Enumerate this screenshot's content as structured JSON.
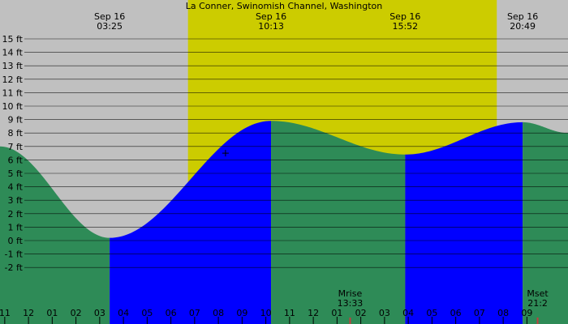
{
  "colors": {
    "night": "#c0c0c0",
    "day": "#cccc00",
    "rising": "#0000ff",
    "falling": "#2e8b57",
    "gridline": "#000000",
    "text": "#000000",
    "moon_marker": "#c04040"
  },
  "chart_data": {
    "type": "area",
    "title": "La Conner, Swinomish Channel, Washington",
    "ylabel": "",
    "xlabel": "",
    "x_unit": "hours from 00:00 Sep 16",
    "xlim": [
      -1.2,
      22.73
    ],
    "ylim": [
      -3.0,
      17.0
    ],
    "grid": true,
    "y_ticks": [
      {
        "value": 15,
        "label": "15 ft"
      },
      {
        "value": 14,
        "label": "14 ft"
      },
      {
        "value": 13,
        "label": "13 ft"
      },
      {
        "value": 12,
        "label": "12 ft"
      },
      {
        "value": 11,
        "label": "11 ft"
      },
      {
        "value": 10,
        "label": "10 ft"
      },
      {
        "value": 9,
        "label": "9 ft"
      },
      {
        "value": 8,
        "label": "8 ft"
      },
      {
        "value": 7,
        "label": "7 ft"
      },
      {
        "value": 6,
        "label": "6 ft"
      },
      {
        "value": 5,
        "label": "5 ft"
      },
      {
        "value": 4,
        "label": "4 ft"
      },
      {
        "value": 3,
        "label": "3 ft"
      },
      {
        "value": 2,
        "label": "2 ft"
      },
      {
        "value": 1,
        "label": "1 ft"
      },
      {
        "value": 0,
        "label": "0 ft"
      },
      {
        "value": -1,
        "label": "-1 ft"
      },
      {
        "value": -2,
        "label": "-2 ft"
      }
    ],
    "x_ticks": [
      {
        "hour": -1,
        "label": "11"
      },
      {
        "hour": 0,
        "label": "12"
      },
      {
        "hour": 1,
        "label": "01"
      },
      {
        "hour": 2,
        "label": "02"
      },
      {
        "hour": 3,
        "label": "03"
      },
      {
        "hour": 4,
        "label": "04"
      },
      {
        "hour": 5,
        "label": "05"
      },
      {
        "hour": 6,
        "label": "06"
      },
      {
        "hour": 7,
        "label": "07"
      },
      {
        "hour": 8,
        "label": "08"
      },
      {
        "hour": 9,
        "label": "09"
      },
      {
        "hour": 10,
        "label": "10"
      },
      {
        "hour": 11,
        "label": "11"
      },
      {
        "hour": 12,
        "label": "12"
      },
      {
        "hour": 13,
        "label": "01"
      },
      {
        "hour": 14,
        "label": "02"
      },
      {
        "hour": 15,
        "label": "03"
      },
      {
        "hour": 16,
        "label": "04"
      },
      {
        "hour": 17,
        "label": "05"
      },
      {
        "hour": 18,
        "label": "06"
      },
      {
        "hour": 19,
        "label": "07"
      },
      {
        "hour": 20,
        "label": "08"
      },
      {
        "hour": 21,
        "label": "09"
      }
    ],
    "daylight": {
      "start": 6.72,
      "end": 19.73
    },
    "tides": [
      {
        "date": "Sep 16",
        "time": "03:25",
        "hour": 3.42,
        "height_ft": 0.2,
        "type": "low"
      },
      {
        "date": "Sep 16",
        "time": "10:13",
        "hour": 10.22,
        "height_ft": 8.9,
        "type": "high"
      },
      {
        "date": "Sep 16",
        "time": "15:52",
        "hour": 15.87,
        "height_ft": 6.4,
        "type": "low"
      },
      {
        "date": "Sep 16",
        "time": "20:49",
        "hour": 20.82,
        "height_ft": 8.8,
        "type": "high"
      }
    ],
    "curve_start": {
      "hour": -1.2,
      "height_ft": 7.0
    },
    "curve_end": {
      "hour": 22.73,
      "height_ft": 8.0
    },
    "moon_events": [
      {
        "label": "Mrise",
        "time": "13:33",
        "hour": 13.55
      },
      {
        "label": "Mset",
        "time": "21:2",
        "hour": 21.45
      }
    ],
    "cursor_marker": {
      "hour": 8.3,
      "height_ft": 6.5
    }
  }
}
